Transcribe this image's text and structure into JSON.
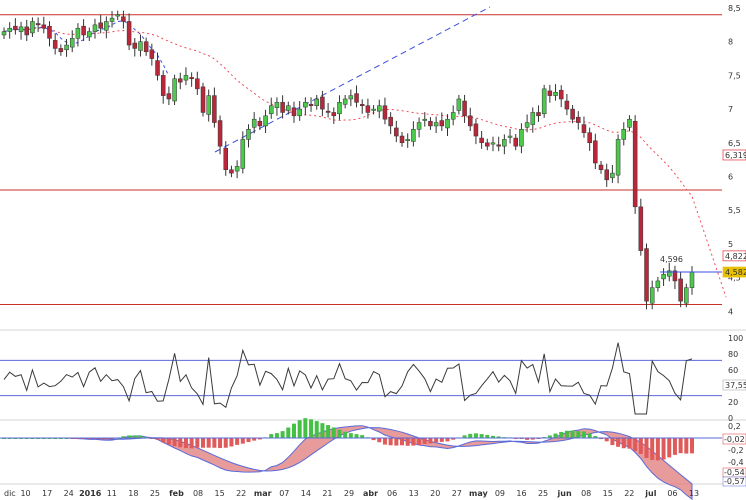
{
  "chart_data": [
    {
      "type": "candlestick",
      "panel": "price",
      "ylim": [
        3.9,
        8.5
      ],
      "y_ticks": [
        "8,5",
        "8",
        "7,5",
        "7",
        "6,5",
        "6",
        "5,5",
        "5",
        "4,5",
        "4"
      ],
      "x_tick_labels": [
        "dic",
        "10",
        "17",
        "24",
        "2016",
        "11",
        "18",
        "25",
        "feb",
        "08",
        "15",
        "22",
        "mar",
        "07",
        "14",
        "21",
        "29",
        "abr",
        "06",
        "13",
        "20",
        "27",
        "may",
        "09",
        "16",
        "25",
        "jun",
        "08",
        "15",
        "22",
        "jul",
        "06",
        "13"
      ],
      "price_closes": [
        8.15,
        8.2,
        8.18,
        8.22,
        8.1,
        8.3,
        8.25,
        8.2,
        8.05,
        7.9,
        7.85,
        7.95,
        8.05,
        8.2,
        8.1,
        8.15,
        8.25,
        8.2,
        8.3,
        8.35,
        8.4,
        8.3,
        7.95,
        7.9,
        8.0,
        7.85,
        7.75,
        7.5,
        7.2,
        7.15,
        7.45,
        7.4,
        7.5,
        7.45,
        7.3,
        6.95,
        7.2,
        6.8,
        6.45,
        6.1,
        6.05,
        6.15,
        6.55,
        6.7,
        6.85,
        6.75,
        6.9,
        7.05,
        7.1,
        6.95,
        7.05,
        6.9,
        7.0,
        7.1,
        7.05,
        7.15,
        7.0,
        6.95,
        6.9,
        7.1,
        7.15,
        7.2,
        7.1,
        7.05,
        6.95,
        7.0,
        7.05,
        6.85,
        6.75,
        6.6,
        6.5,
        6.55,
        6.7,
        6.8,
        6.85,
        6.75,
        6.8,
        6.75,
        6.85,
        6.95,
        7.15,
        6.9,
        6.75,
        6.6,
        6.5,
        6.45,
        6.5,
        6.45,
        6.55,
        6.6,
        6.45,
        6.7,
        6.8,
        6.95,
        6.9,
        7.3,
        7.2,
        7.25,
        7.15,
        7.0,
        6.85,
        6.8,
        6.65,
        6.5,
        6.2,
        6.1,
        5.95,
        6.05,
        6.55,
        6.7,
        6.85,
        5.55,
        4.9,
        4.15,
        4.35,
        4.45,
        4.55,
        4.6,
        4.45,
        4.15,
        4.35,
        4.58
      ],
      "overlays": [
        {
          "label": "6,319",
          "value": 6.319,
          "color": "#e0303a"
        },
        {
          "label": "4,822",
          "value": 4.822,
          "color": "#e0303a"
        },
        {
          "label": "4,582",
          "value": 4.582,
          "color": "#e8c000"
        }
      ],
      "annotation": "4,596",
      "horizontal_levels": [
        8.4,
        5.8,
        4.1
      ]
    },
    {
      "type": "line",
      "panel": "oscillator",
      "y_ticks": [
        "100",
        "80",
        "60",
        "40",
        "20",
        "0"
      ],
      "ylim": [
        0,
        100
      ],
      "bands": [
        72,
        28
      ],
      "last_label": "37,55"
    },
    {
      "type": "macd",
      "panel": "macd",
      "y_ticks": [
        "0,2",
        "0",
        "-0,2",
        "-0,4"
      ],
      "labels": [
        "-0,02",
        "-0,54",
        "-0,57"
      ]
    }
  ],
  "colors": {
    "bull": "#4cc84c",
    "bear": "#b8283a",
    "level_line": "#c8322a",
    "trend_line": "#3a4fe0",
    "moving_avg": "#f04a5a",
    "osc_band": "#5a6ad8",
    "macd_fill": "#e07a7a",
    "signal_fill": "#7ad07a",
    "hist_pos": "#44c044",
    "hist_neg": "#e05a5a"
  }
}
